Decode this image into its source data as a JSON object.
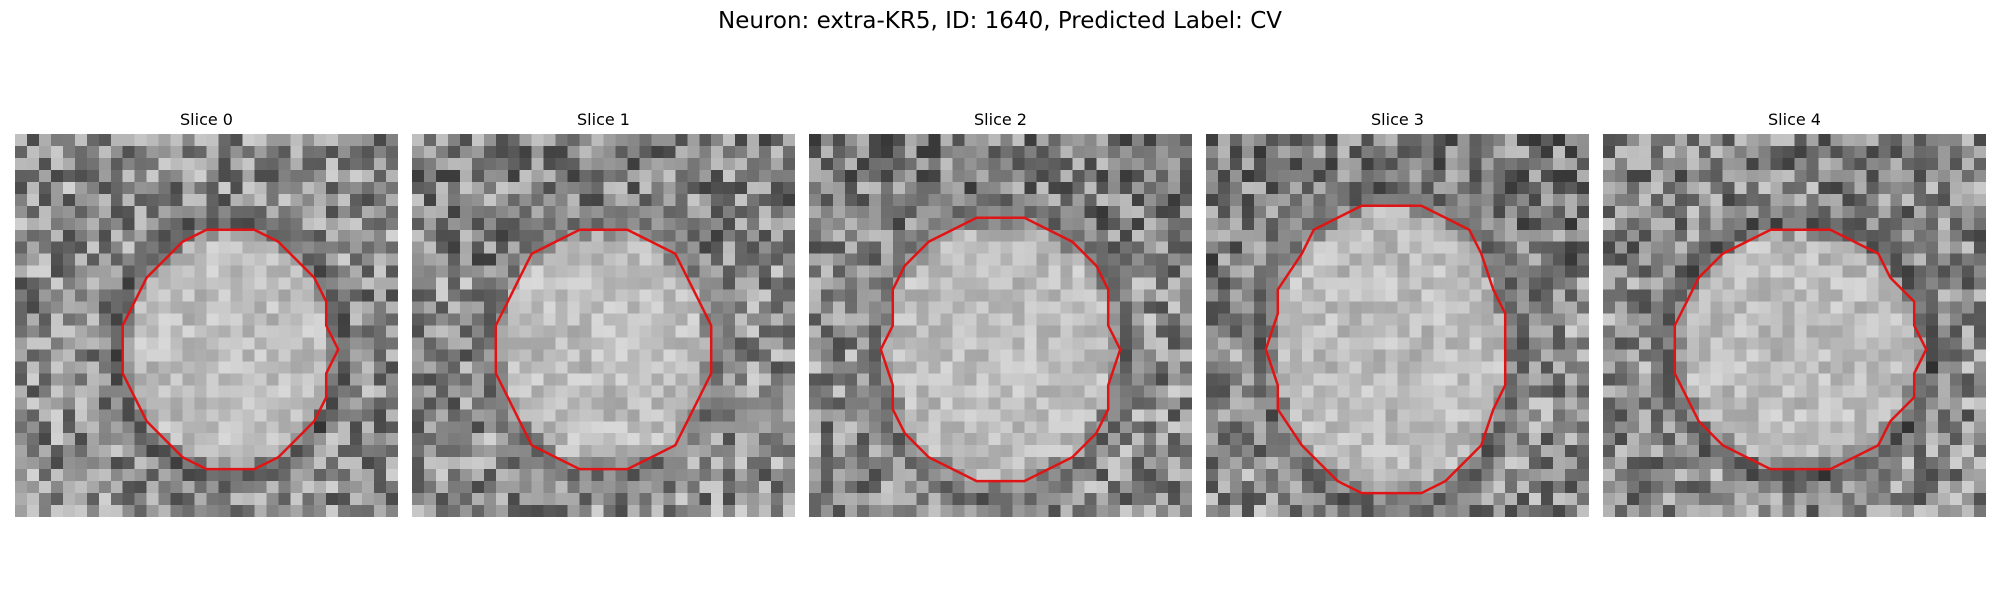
{
  "figure": {
    "title": "Neuron: extra-KR5, ID: 1640, Predicted Label: CV",
    "contour_color": "#e01414"
  },
  "slices": [
    {
      "label": "Slice 0"
    },
    {
      "label": "Slice 1"
    },
    {
      "label": "Slice 2"
    },
    {
      "label": "Slice 3"
    },
    {
      "label": "Slice 4"
    }
  ]
}
